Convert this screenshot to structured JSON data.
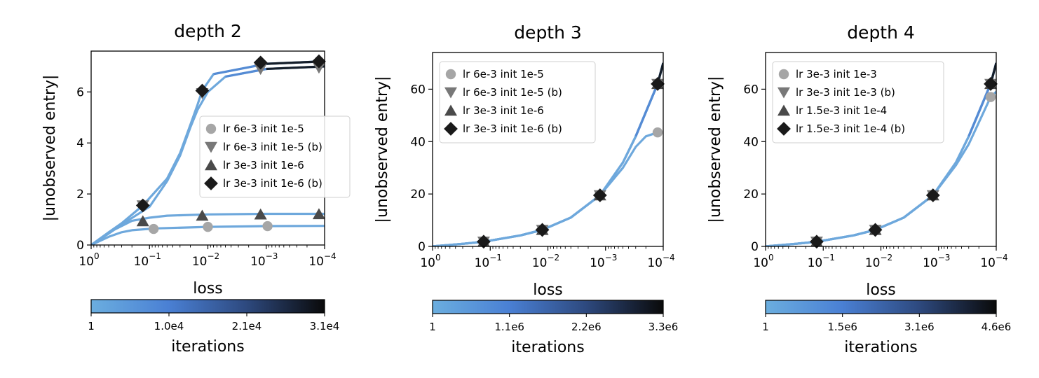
{
  "chart_data": [
    {
      "type": "line",
      "title": "depth 2",
      "xlabel": "loss",
      "ylabel": "|unobserved entry|",
      "x_scale": "log-reversed",
      "xlim": [
        1,
        0.0001
      ],
      "ylim": [
        0,
        7.6
      ],
      "x_ticks": [
        1,
        0.1,
        0.01,
        0.001,
        0.0001
      ],
      "x_tick_base": [
        "10",
        "10",
        "10",
        "10",
        "10"
      ],
      "x_tick_exp": [
        "0",
        "−1",
        "−2",
        "−3",
        "−4"
      ],
      "y_ticks": [
        0,
        2,
        4,
        6
      ],
      "y_tick_labels": [
        "0",
        "2",
        "4",
        "6"
      ],
      "legend_position": "center-right",
      "colorbar": {
        "label": "iterations",
        "ticks": [
          "1",
          "1.0e4",
          "2.1e4",
          "3.1e4"
        ]
      },
      "series": [
        {
          "name": "lr 6e-3 init 1e-5",
          "marker": "circle",
          "color": "#a6a6a6",
          "x": [
            1,
            0.5,
            0.3,
            0.2,
            0.08,
            0.01,
            0.001,
            0.0001
          ],
          "y": [
            0,
            0.32,
            0.5,
            0.58,
            0.65,
            0.71,
            0.74,
            0.75
          ],
          "markers_x": [
            0.085,
            0.01,
            0.00095
          ],
          "markers_y": [
            0.63,
            0.71,
            0.74
          ]
        },
        {
          "name": "lr 6e-3 init 1e-5 (b)",
          "marker": "triangle-down",
          "color": "#787878",
          "x": [
            1,
            0.5,
            0.3,
            0.1,
            0.05,
            0.03,
            0.02,
            0.015,
            0.01,
            0.005,
            0.001,
            0.0001
          ],
          "y": [
            0,
            0.45,
            0.8,
            1.5,
            2.5,
            3.5,
            4.6,
            5.3,
            6.0,
            6.6,
            6.9,
            7.0
          ],
          "markers_x": [
            0.13,
            0.0125,
            0.00125,
            0.000125
          ],
          "markers_y": [
            1.55,
            5.95,
            6.9,
            6.95
          ]
        },
        {
          "name": "lr 3e-3 init 1e-6",
          "marker": "triangle-up",
          "color": "#4a4a4a",
          "x": [
            1,
            0.4,
            0.2,
            0.1,
            0.05,
            0.01,
            0.001,
            0.0001
          ],
          "y": [
            0,
            0.6,
            0.95,
            1.07,
            1.15,
            1.2,
            1.22,
            1.22
          ],
          "markers_x": [
            0.13,
            0.0125,
            0.00125,
            0.000125
          ],
          "markers_y": [
            0.93,
            1.15,
            1.2,
            1.21
          ]
        },
        {
          "name": "lr 3e-3 init 1e-6 (b)",
          "marker": "diamond",
          "color": "#1a1a1a",
          "x": [
            1,
            0.5,
            0.3,
            0.13,
            0.05,
            0.03,
            0.02,
            0.015,
            0.0125,
            0.008,
            0.001,
            0.0001
          ],
          "y": [
            0,
            0.5,
            0.85,
            1.55,
            2.6,
            3.6,
            4.7,
            5.5,
            6.05,
            6.7,
            7.1,
            7.2
          ],
          "markers_x": [
            0.13,
            0.0125,
            0.00125,
            0.000125
          ],
          "markers_y": [
            1.55,
            6.05,
            7.15,
            7.2
          ]
        }
      ]
    },
    {
      "type": "line",
      "title": "depth 3",
      "xlabel": "loss",
      "ylabel": "|unobserved entry|",
      "x_scale": "log-reversed",
      "xlim": [
        1,
        0.0001
      ],
      "ylim": [
        0,
        74
      ],
      "x_ticks": [
        1,
        0.1,
        0.01,
        0.001,
        0.0001
      ],
      "x_tick_base": [
        "10",
        "10",
        "10",
        "10",
        "10"
      ],
      "x_tick_exp": [
        "0",
        "−1",
        "−2",
        "−3",
        "−4"
      ],
      "y_ticks": [
        0,
        20,
        40,
        60
      ],
      "y_tick_labels": [
        "0",
        "20",
        "40",
        "60"
      ],
      "legend_position": "upper-left",
      "colorbar": {
        "label": "iterations",
        "ticks": [
          "1",
          "1.1e6",
          "2.2e6",
          "3.3e6"
        ]
      },
      "series": [
        {
          "name": "lr 6e-3 init 1e-5",
          "marker": "circle",
          "color": "#a6a6a6",
          "x": [
            1,
            0.3,
            0.13,
            0.03,
            0.0125,
            0.004,
            0.00125,
            0.0005,
            0.0003,
            0.0002,
            0.000125
          ],
          "y": [
            0,
            1,
            1.8,
            4.2,
            6.3,
            11,
            19.5,
            30,
            38,
            42,
            43.5
          ],
          "markers_x": [
            0.000125
          ],
          "markers_y": [
            43.5
          ]
        },
        {
          "name": "lr 6e-3 init 1e-5 (b)",
          "marker": "triangle-down",
          "color": "#787878",
          "x": [
            1,
            0.3,
            0.13,
            0.03,
            0.0125,
            0.004,
            0.00125,
            0.0005,
            0.0003,
            0.000125,
            0.0001
          ],
          "y": [
            0,
            1,
            1.8,
            4.2,
            6.3,
            11,
            19.5,
            32,
            42,
            62,
            70
          ],
          "markers_x": [
            0.13,
            0.0125,
            0.00125,
            0.000125
          ],
          "markers_y": [
            1.8,
            6.3,
            19.5,
            62
          ]
        },
        {
          "name": "lr 3e-3 init 1e-6",
          "marker": "triangle-up",
          "color": "#4a4a4a",
          "x": [
            1,
            0.3,
            0.13,
            0.03,
            0.0125,
            0.004,
            0.00125,
            0.0005,
            0.0003,
            0.000125,
            0.0001
          ],
          "y": [
            0,
            1,
            1.8,
            4.2,
            6.3,
            11,
            19.5,
            32,
            42,
            62,
            70
          ],
          "markers_x": [
            0.13,
            0.0125,
            0.00125,
            0.000125
          ],
          "markers_y": [
            1.8,
            6.3,
            19.5,
            62
          ]
        },
        {
          "name": "lr 3e-3 init 1e-6 (b)",
          "marker": "diamond",
          "color": "#1a1a1a",
          "x": [
            1,
            0.3,
            0.13,
            0.03,
            0.0125,
            0.004,
            0.00125,
            0.0005,
            0.0003,
            0.000125,
            0.0001
          ],
          "y": [
            0,
            1,
            1.8,
            4.2,
            6.3,
            11,
            19.5,
            32,
            42,
            62,
            70
          ],
          "markers_x": [
            0.13,
            0.0125,
            0.00125,
            0.000125
          ],
          "markers_y": [
            1.8,
            6.3,
            19.5,
            62
          ]
        }
      ]
    },
    {
      "type": "line",
      "title": "depth 4",
      "xlabel": "loss",
      "ylabel": "|unobserved entry|",
      "x_scale": "log-reversed",
      "xlim": [
        1,
        0.0001
      ],
      "ylim": [
        0,
        74
      ],
      "x_ticks": [
        1,
        0.1,
        0.01,
        0.001,
        0.0001
      ],
      "x_tick_base": [
        "10",
        "10",
        "10",
        "10",
        "10"
      ],
      "x_tick_exp": [
        "0",
        "−1",
        "−2",
        "−3",
        "−4"
      ],
      "y_ticks": [
        0,
        20,
        40,
        60
      ],
      "y_tick_labels": [
        "0",
        "20",
        "40",
        "60"
      ],
      "legend_position": "upper-left",
      "colorbar": {
        "label": "iterations",
        "ticks": [
          "1",
          "1.5e6",
          "3.1e6",
          "4.6e6"
        ]
      },
      "series": [
        {
          "name": "lr 3e-3 init 1e-3",
          "marker": "circle",
          "color": "#a6a6a6",
          "x": [
            1,
            0.3,
            0.13,
            0.03,
            0.0125,
            0.004,
            0.00125,
            0.0005,
            0.0003,
            0.000125,
            0.0001
          ],
          "y": [
            0,
            1,
            1.8,
            4.2,
            6.3,
            11,
            19.5,
            31,
            39,
            57,
            59
          ],
          "markers_x": [
            0.000125
          ],
          "markers_y": [
            57
          ]
        },
        {
          "name": "lr 3e-3 init 1e-3 (b)",
          "marker": "triangle-down",
          "color": "#787878",
          "x": [
            1,
            0.3,
            0.13,
            0.03,
            0.0125,
            0.004,
            0.00125,
            0.0005,
            0.0003,
            0.000125,
            0.0001
          ],
          "y": [
            0,
            1,
            1.8,
            4.2,
            6.3,
            11,
            19.5,
            32,
            42,
            62,
            70
          ],
          "markers_x": [
            0.13,
            0.0125,
            0.00125,
            0.000125
          ],
          "markers_y": [
            1.8,
            6.3,
            19.5,
            62
          ]
        },
        {
          "name": "lr 1.5e-3 init 1e-4",
          "marker": "triangle-up",
          "color": "#4a4a4a",
          "x": [
            1,
            0.3,
            0.13,
            0.03,
            0.0125,
            0.004,
            0.00125,
            0.0005,
            0.0003,
            0.000125,
            0.0001
          ],
          "y": [
            0,
            1,
            1.8,
            4.2,
            6.3,
            11,
            19.5,
            32,
            42,
            62,
            70
          ],
          "markers_x": [
            0.13,
            0.0125,
            0.00125,
            0.000125
          ],
          "markers_y": [
            1.8,
            6.3,
            19.5,
            62
          ]
        },
        {
          "name": "lr 1.5e-3 init 1e-4 (b)",
          "marker": "diamond",
          "color": "#1a1a1a",
          "x": [
            1,
            0.3,
            0.13,
            0.03,
            0.0125,
            0.004,
            0.00125,
            0.0005,
            0.0003,
            0.000125,
            0.0001
          ],
          "y": [
            0,
            1,
            1.8,
            4.2,
            6.3,
            11,
            19.5,
            32,
            42,
            62,
            70
          ],
          "markers_x": [
            0.13,
            0.0125,
            0.00125,
            0.000125
          ],
          "markers_y": [
            1.8,
            6.3,
            19.5,
            62
          ]
        }
      ]
    }
  ],
  "colors": {
    "curve_light": "#6ea8dc",
    "curve_mid": "#4a7fd0",
    "curve_dark": "#0a0a0a",
    "colormap": [
      "#6baedf",
      "#4a80d4",
      "#2e4a80",
      "#0a0a0a"
    ]
  }
}
